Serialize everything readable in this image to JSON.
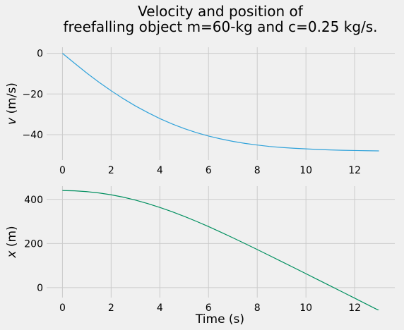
{
  "title_line1": "Velocity and position of",
  "title_line2": "freefalling object m=60-kg and c=0.25 kg/s.",
  "chart_data": [
    {
      "type": "line",
      "ylabel_symbol": "v",
      "ylabel_unit": " (m/s)",
      "xlim": [
        -0.65,
        13.65
      ],
      "ylim": [
        -52.5,
        3
      ],
      "xticks": [
        0,
        2,
        4,
        6,
        8,
        10,
        12
      ],
      "yticks": [
        0,
        -20,
        -40
      ],
      "ytick_labels": [
        "0",
        "−20",
        "−40"
      ],
      "grid": true,
      "color": "#30a2da",
      "series": [
        {
          "x": [
            0,
            0.5,
            1,
            1.5,
            2,
            2.5,
            3,
            3.5,
            4,
            4.5,
            5,
            5.5,
            6,
            6.5,
            7,
            7.5,
            8,
            8.5,
            9,
            9.5,
            10,
            10.5,
            11,
            11.5,
            12,
            12.5,
            13
          ],
          "y": [
            0,
            -4.9,
            -9.7,
            -14.2,
            -18.4,
            -22.3,
            -25.9,
            -29.1,
            -32.1,
            -34.7,
            -37.0,
            -39.0,
            -40.7,
            -42.1,
            -43.3,
            -44.3,
            -45.1,
            -45.8,
            -46.3,
            -46.7,
            -47.0,
            -47.3,
            -47.5,
            -47.7,
            -47.8,
            -47.9,
            -48.0
          ]
        }
      ]
    },
    {
      "type": "line",
      "ylabel_symbol": "x",
      "ylabel_unit": " (m)",
      "xlabel": "Time (s)",
      "xlim": [
        -0.65,
        13.65
      ],
      "ylim": [
        -45,
        460
      ],
      "xticks": [
        0,
        2,
        4,
        6,
        8,
        10,
        12
      ],
      "yticks": [
        0,
        200,
        400
      ],
      "ytick_labels": [
        "0",
        "200",
        "400"
      ],
      "grid": true,
      "color": "#008f5f",
      "series": [
        {
          "x": [
            0,
            0.5,
            1,
            1.5,
            2,
            2.5,
            3,
            3.5,
            4,
            4.5,
            5,
            5.5,
            6,
            6.5,
            7,
            7.5,
            8,
            8.5,
            9,
            9.5,
            10,
            10.5,
            11,
            11.5,
            12,
            12.5,
            13
          ],
          "y": [
            440,
            438.8,
            435.2,
            429.2,
            420.8,
            410.0,
            396.8,
            381.2,
            363.6,
            344.2,
            323.1,
            300.6,
            276.7,
            251.7,
            225.9,
            199.5,
            172.7,
            145.6,
            118.3,
            90.8,
            63.2,
            35.6,
            7.9,
            -19.9,
            -47.7,
            -75.6,
            -103.5
          ]
        }
      ]
    }
  ]
}
